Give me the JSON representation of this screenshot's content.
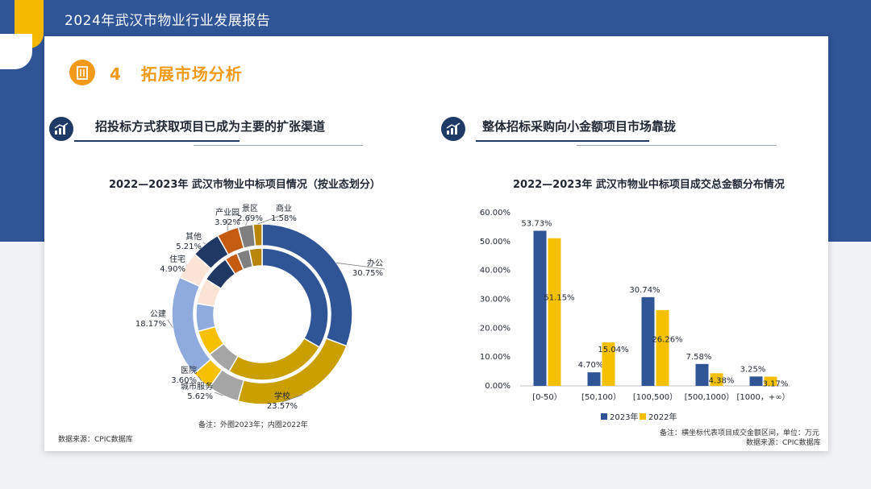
{
  "header": {
    "title": "2024年武汉市物业行业发展报告"
  },
  "section": {
    "title": "4   拓展市场分析"
  },
  "left": {
    "subtitle": "招投标方式获取项目已成为主要的扩张渠道",
    "note": "备注：外圈2023年；内圈2022年",
    "source": "数据来源：CPIC数据库"
  },
  "right": {
    "subtitle": "整体招标采购向小金额项目市场靠拢",
    "note": "备注：横坐标代表项目成交金额区间，单位：万元",
    "source": "数据来源：CPIC数据库"
  },
  "colors": {
    "navy": "#2f5597",
    "gold": "#f5b800",
    "orange": "#f39a1b"
  },
  "chart_data": [
    {
      "type": "pie",
      "subtype": "double-donut",
      "title": "2022—2023年 武汉市物业中标项目情况（按业态划分）",
      "outer_series": "2023年",
      "inner_series": "2022年",
      "categories": [
        "办公",
        "学校",
        "城市服务",
        "医院",
        "公建",
        "住宅",
        "其他",
        "产业园",
        "景区",
        "商业"
      ],
      "colors": [
        "#2f5597",
        "#c9a000",
        "#a5a5a5",
        "#f5c000",
        "#8faadc",
        "#fbe3d6",
        "#203864",
        "#c55a11",
        "#7f7f7f",
        "#b8860b"
      ],
      "outer_values": [
        30.75,
        23.57,
        5.62,
        3.6,
        18.17,
        4.9,
        5.21,
        3.92,
        2.69,
        1.58
      ],
      "outer_labels": [
        "30.75%",
        "23.57%",
        "5.62%",
        "3.60%",
        "18.17%",
        "4.90%",
        "5.21%",
        "3.92%",
        "2.69%",
        "1.58%"
      ],
      "inner_values": [
        32.0,
        24.0,
        6.0,
        6.0,
        6.5,
        6.0,
        6.5,
        3.0,
        3.0,
        3.0
      ]
    },
    {
      "type": "bar",
      "title": "2022—2023年 武汉市物业中标项目成交总金额分布情况",
      "categories": [
        "[0-50）",
        "[50,100）",
        "[100,500）",
        "[500,1000）",
        "[1000，+∞）"
      ],
      "series": [
        {
          "name": "2023年",
          "color": "#2f5597",
          "values": [
            53.73,
            4.7,
            30.74,
            7.58,
            3.25
          ],
          "labels": [
            "53.73%",
            "4.70%",
            "30.74%",
            "7.58%",
            "3.25%"
          ]
        },
        {
          "name": "2022年",
          "color": "#f5c000",
          "values": [
            51.15,
            15.04,
            26.26,
            4.38,
            3.17
          ],
          "labels": [
            "51.15%",
            "15.04%",
            "26.26%",
            "4.38%",
            "3.17%"
          ]
        }
      ],
      "ylim": [
        0,
        60
      ],
      "yticks": [
        "0.00%",
        "10.00%",
        "20.00%",
        "30.00%",
        "40.00%",
        "50.00%",
        "60.00%"
      ],
      "legend_position": "bottom-center"
    }
  ]
}
